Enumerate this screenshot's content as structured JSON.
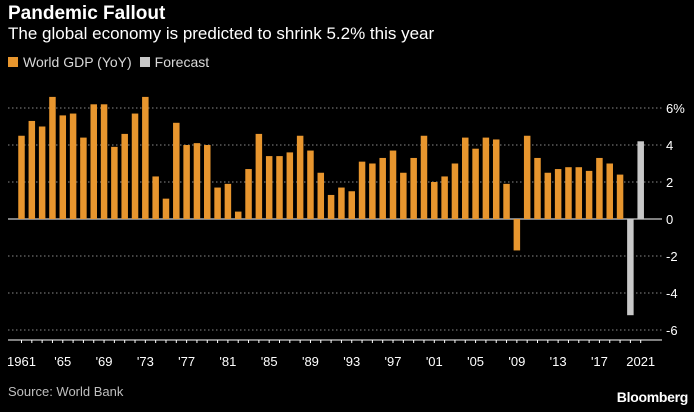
{
  "header": {
    "title": "Pandemic Fallout",
    "subtitle": "The global economy is predicted to shrink 5.2% this year"
  },
  "legend": [
    {
      "label": "World GDP (YoY)",
      "color": "#e8962e"
    },
    {
      "label": "Forecast",
      "color": "#c8c8c8"
    }
  ],
  "footer": {
    "source": "Source: World Bank",
    "brand": "Bloomberg"
  },
  "chart_data": {
    "type": "bar",
    "xlabel": "",
    "ylabel": "",
    "ylim": [
      -6,
      6
    ],
    "y_ticks": [
      6,
      4,
      2,
      0,
      -2,
      -4,
      -6
    ],
    "y_tick_labels": [
      "6%",
      "4",
      "2",
      "0",
      "-2",
      "-4",
      "-6"
    ],
    "x_tick_labels": [
      {
        "year": 1961,
        "label": "1961"
      },
      {
        "year": 1965,
        "label": "'65"
      },
      {
        "year": 1969,
        "label": "'69"
      },
      {
        "year": 1973,
        "label": "'73"
      },
      {
        "year": 1977,
        "label": "'77"
      },
      {
        "year": 1981,
        "label": "'81"
      },
      {
        "year": 1985,
        "label": "'85"
      },
      {
        "year": 1989,
        "label": "'89"
      },
      {
        "year": 1993,
        "label": "'93"
      },
      {
        "year": 1997,
        "label": "'97"
      },
      {
        "year": 2001,
        "label": "'01"
      },
      {
        "year": 2005,
        "label": "'05"
      },
      {
        "year": 2009,
        "label": "'09"
      },
      {
        "year": 2013,
        "label": "'13"
      },
      {
        "year": 2017,
        "label": "'17"
      },
      {
        "year": 2021,
        "label": "2021"
      }
    ],
    "grid": true,
    "legend_position": "top-left",
    "series": [
      {
        "name": "World GDP (YoY)",
        "color": "#e8962e",
        "x": [
          1961,
          1962,
          1963,
          1964,
          1965,
          1966,
          1967,
          1968,
          1969,
          1970,
          1971,
          1972,
          1973,
          1974,
          1975,
          1976,
          1977,
          1978,
          1979,
          1980,
          1981,
          1982,
          1983,
          1984,
          1985,
          1986,
          1987,
          1988,
          1989,
          1990,
          1991,
          1992,
          1993,
          1994,
          1995,
          1996,
          1997,
          1998,
          1999,
          2000,
          2001,
          2002,
          2003,
          2004,
          2005,
          2006,
          2007,
          2008,
          2009,
          2010,
          2011,
          2012,
          2013,
          2014,
          2015,
          2016,
          2017,
          2018,
          2019
        ],
        "values": [
          4.5,
          5.3,
          5.0,
          6.6,
          5.6,
          5.7,
          4.4,
          6.2,
          6.2,
          3.9,
          4.6,
          5.7,
          6.6,
          2.3,
          1.1,
          5.2,
          4.0,
          4.1,
          4.0,
          1.7,
          1.9,
          0.4,
          2.7,
          4.6,
          3.4,
          3.4,
          3.6,
          4.5,
          3.7,
          2.5,
          1.3,
          1.7,
          1.5,
          3.1,
          3.0,
          3.3,
          3.7,
          2.5,
          3.3,
          4.5,
          2.0,
          2.3,
          3.0,
          4.4,
          3.8,
          4.4,
          4.3,
          1.9,
          -1.7,
          4.5,
          3.3,
          2.5,
          2.7,
          2.8,
          2.8,
          2.6,
          3.3,
          3.0,
          2.4
        ]
      },
      {
        "name": "Forecast",
        "color": "#c8c8c8",
        "x": [
          2020,
          2021
        ],
        "values": [
          -5.2,
          4.2
        ]
      }
    ]
  }
}
